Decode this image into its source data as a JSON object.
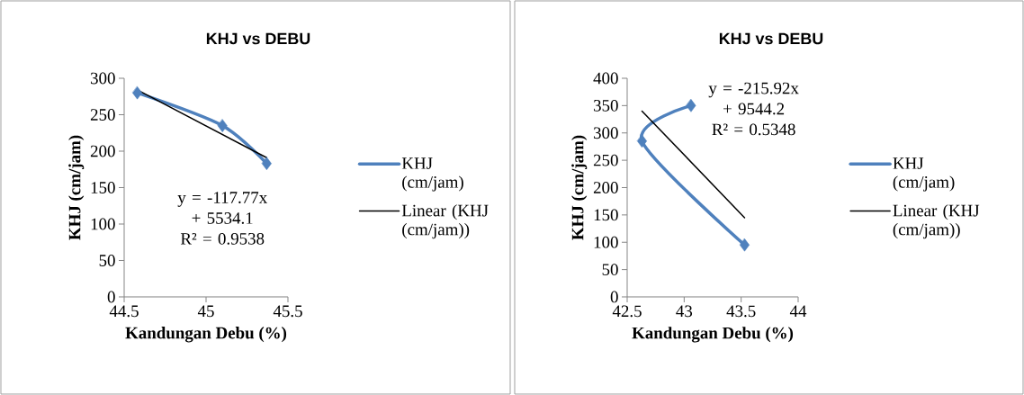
{
  "chart_data": [
    {
      "type": "line",
      "title": "KHJ vs DEBU",
      "xlabel": "Kandungan Debu (%)",
      "ylabel": "KHJ (cm/jam)",
      "xlim": [
        44.5,
        45.5
      ],
      "xticks": [
        44.5,
        45,
        45.5
      ],
      "ylim": [
        0,
        300
      ],
      "yticks": [
        0,
        50,
        100,
        150,
        200,
        250,
        300
      ],
      "legend": "right",
      "annotations": [
        "y = -117.77x + 5534.1",
        "R² = 0.9538"
      ],
      "series": [
        {
          "name": "KHJ (cm/jam)",
          "color": "#4f81bd",
          "x": [
            44.58,
            45.1,
            45.37
          ],
          "values": [
            280,
            235,
            183
          ],
          "marker": "diamond"
        },
        {
          "name": "Linear (KHJ (cm/jam))",
          "color": "#000000",
          "type": "line",
          "x": [
            44.58,
            45.37
          ],
          "values": [
            284,
            191
          ]
        }
      ]
    },
    {
      "type": "line",
      "title": "KHJ vs DEBU",
      "xlabel": "Kandungan Debu (%)",
      "ylabel": "KHJ (cm/jam)",
      "xlim": [
        42.5,
        44
      ],
      "xticks": [
        42.5,
        43,
        43.5,
        44
      ],
      "ylim": [
        0,
        400
      ],
      "yticks": [
        0,
        50,
        100,
        150,
        200,
        250,
        300,
        350,
        400
      ],
      "legend": "right",
      "annotations": [
        "y = -215.92x + 9544.2",
        "R² = 0.5348"
      ],
      "series": [
        {
          "name": "KHJ (cm/jam)",
          "color": "#4f81bd",
          "x": [
            43.06,
            42.63,
            43.53
          ],
          "values": [
            350,
            285,
            95
          ],
          "marker": "diamond"
        },
        {
          "name": "Linear (KHJ (cm/jam))",
          "color": "#000000",
          "type": "line",
          "x": [
            42.63,
            43.53
          ],
          "values": [
            340,
            145
          ]
        }
      ]
    }
  ]
}
